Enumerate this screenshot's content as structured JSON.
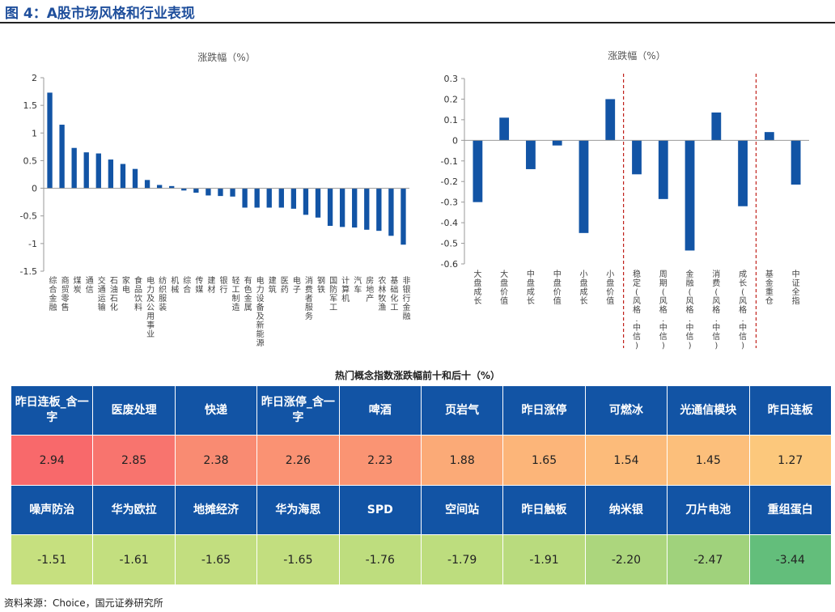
{
  "figure_title": "图 4：A股市场风格和行业表现",
  "source": "资料来源：Choice，国元证券研究所",
  "chart_data": [
    {
      "type": "bar",
      "title": "涨跌幅（%）",
      "ylim": [
        -1.5,
        2
      ],
      "yticks": [
        2,
        1.5,
        1,
        0.5,
        0,
        -0.5,
        -1,
        -1.5
      ],
      "categories": [
        "综合金融",
        "商贸零售",
        "煤炭",
        "通信",
        "交通运输",
        "石油石化",
        "家电",
        "食品饮料",
        "电力及公用事业",
        "纺织服装",
        "机械",
        "综合",
        "传媒",
        "建材",
        "银行",
        "轻工制造",
        "有色金属",
        "电力设备及新能源",
        "建筑",
        "医药",
        "电子",
        "消费者服务",
        "钢铁",
        "国防军工",
        "计算机",
        "汽车",
        "房地产",
        "农林牧渔",
        "基础化工",
        "非银行金融"
      ],
      "values": [
        1.73,
        1.15,
        0.73,
        0.65,
        0.63,
        0.52,
        0.44,
        0.35,
        0.15,
        0.06,
        0.04,
        -0.04,
        -0.08,
        -0.13,
        -0.14,
        -0.15,
        -0.35,
        -0.35,
        -0.35,
        -0.35,
        -0.37,
        -0.48,
        -0.53,
        -0.68,
        -0.7,
        -0.71,
        -0.75,
        -0.77,
        -0.86,
        -1.02
      ],
      "color": "#1254a5"
    },
    {
      "type": "bar",
      "title": "涨跌幅（%）",
      "ylim": [
        -0.6,
        0.3
      ],
      "yticks": [
        0.3,
        0.2,
        0.1,
        0.0,
        -0.1,
        -0.2,
        -0.3,
        -0.4,
        -0.5,
        -0.6
      ],
      "categories": [
        "大盘成长",
        "大盘价值",
        "中盘成长",
        "中盘价值",
        "小盘成长",
        "小盘价值",
        "稳定(风格.中信)",
        "周期(风格.中信)",
        "金融(风格.中信)",
        "消费(风格.中信)",
        "成长(风格.中信)",
        "基金重仓",
        "中证全指"
      ],
      "values": [
        -0.3,
        0.11,
        -0.14,
        -0.025,
        -0.45,
        0.2,
        -0.165,
        -0.285,
        -0.535,
        0.135,
        -0.32,
        0.04,
        -0.215
      ],
      "dividers_after_index": [
        5,
        10
      ],
      "color": "#1254a5",
      "divider_color": "#c0201a"
    }
  ],
  "table": {
    "title": "热门概念指数涨跌幅前十和后十（%）",
    "top_names": [
      "昨日连板_含一字",
      "医废处理",
      "快递",
      "昨日涨停_含一字",
      "啤酒",
      "页岩气",
      "昨日涨停",
      "可燃冰",
      "光通信模块",
      "昨日连板"
    ],
    "top_values": [
      "2.94",
      "2.85",
      "2.38",
      "2.26",
      "2.23",
      "1.88",
      "1.65",
      "1.54",
      "1.45",
      "1.27"
    ],
    "top_colors": [
      "#f8696b",
      "#f8746e",
      "#f98b72",
      "#fa9273",
      "#fa9473",
      "#fbaa77",
      "#fcb579",
      "#fcbb7a",
      "#fcbf7b",
      "#fcc87c"
    ],
    "bottom_names": [
      "噪声防治",
      "华为欧拉",
      "地摊经济",
      "华为海思",
      "SPD",
      "空间站",
      "昨日触板",
      "纳米银",
      "刀片电池",
      "重组蛋白"
    ],
    "bottom_values": [
      "-1.51",
      "-1.61",
      "-1.65",
      "-1.65",
      "-1.76",
      "-1.79",
      "-1.91",
      "-2.20",
      "-2.47",
      "-3.44"
    ],
    "bottom_colors": [
      "#c6e07f",
      "#c3df7f",
      "#c2de7f",
      "#c2de7f",
      "#bedd7e",
      "#bddd7e",
      "#b9db7e",
      "#acd67d",
      "#a0d27c",
      "#63be7b"
    ]
  }
}
